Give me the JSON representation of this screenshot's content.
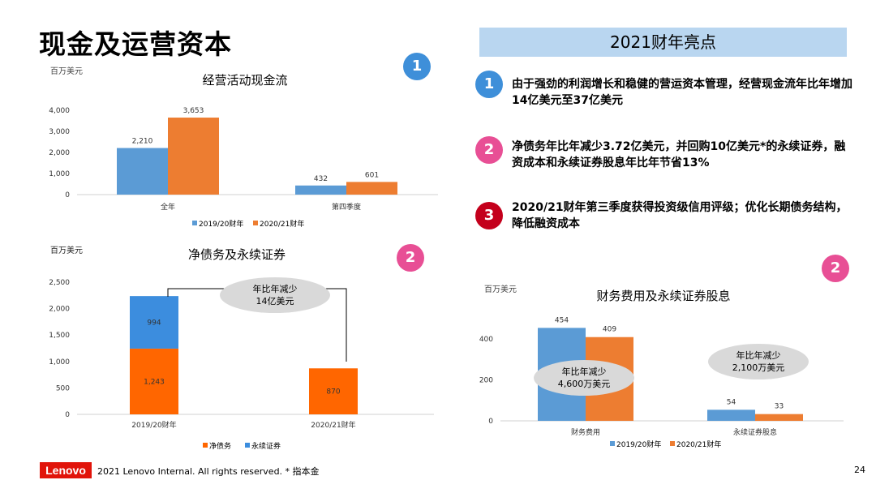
{
  "page": {
    "title": "现金及运营资本",
    "footer": {
      "logo": "Lenovo",
      "copyright": "2021 Lenovo Internal. All rights reserved. * 指本金",
      "page_number": "24"
    }
  },
  "highlights": {
    "banner": "2021财年亮点",
    "items": [
      {
        "badge": "1",
        "color": "#3e8fd9",
        "text": "由于强劲的利润增长和稳健的营运资本管理，经营现金流年比年增加14亿美元至37亿美元"
      },
      {
        "badge": "2",
        "color": "#e84f95",
        "text": "净债务年比年减少3.72亿美元，并回购10亿美元*的永续证券，融资成本和永续证券股息年比年节省13%"
      },
      {
        "badge": "3",
        "color": "#c4001c",
        "text": "2020/21财年第三季度获得投资级信用评级；优化长期债务结构，降低融资成本"
      }
    ]
  },
  "colors": {
    "fy2019": "#5b9bd5",
    "fy2020": "#ed7d31",
    "net_debt": "#ff6600",
    "perpetual": "#3c8dde",
    "callout": "#d9d9d9"
  },
  "chart_data": [
    {
      "type": "bar",
      "title": "经营活动现金流",
      "ylabel": "百万美元",
      "badge": "1",
      "categories": [
        "全年",
        "第四季度"
      ],
      "series": [
        {
          "name": "2019/20财年",
          "values": [
            2210,
            432
          ],
          "labels": [
            "2,210",
            "432"
          ]
        },
        {
          "name": "2020/21财年",
          "values": [
            3653,
            601
          ],
          "labels": [
            "3,653",
            "601"
          ]
        }
      ],
      "yticks": [
        "0",
        "1,000",
        "2,000",
        "3,000",
        "4,000"
      ],
      "ylim": [
        0,
        4000
      ],
      "legend": "bottom"
    },
    {
      "type": "bar",
      "stacked": true,
      "title": "净债务及永续证券",
      "ylabel": "百万美元",
      "badge": "2",
      "categories": [
        "2019/20财年",
        "2020/21财年"
      ],
      "series": [
        {
          "name": "净债务",
          "values": [
            1243,
            870
          ],
          "labels": [
            "1,243",
            "870"
          ]
        },
        {
          "name": "永续证券",
          "values": [
            994,
            0
          ],
          "labels": [
            "994",
            ""
          ]
        }
      ],
      "yticks": [
        "0",
        "500",
        "1,000",
        "1,500",
        "2,000",
        "2,500"
      ],
      "ylim": [
        0,
        2500
      ],
      "annotation": {
        "line1": "年比年减少",
        "line2": "14亿美元"
      },
      "legend": "bottom"
    },
    {
      "type": "bar",
      "title": "财务费用及永续证券股息",
      "ylabel": "百万美元",
      "badge": "2",
      "categories": [
        "财务费用",
        "永续证券股息"
      ],
      "series": [
        {
          "name": "2019/20财年",
          "values": [
            454,
            54
          ],
          "labels": [
            "454",
            "54"
          ]
        },
        {
          "name": "2020/21财年",
          "values": [
            409,
            33
          ],
          "labels": [
            "409",
            "33"
          ]
        }
      ],
      "yticks": [
        "0",
        "200",
        "400"
      ],
      "ylim": [
        0,
        500
      ],
      "annotations": [
        {
          "line1": "年比年减少",
          "line2": "4,600万美元"
        },
        {
          "line1": "年比年减少",
          "line2": "2,100万美元"
        }
      ],
      "legend": "bottom"
    }
  ]
}
